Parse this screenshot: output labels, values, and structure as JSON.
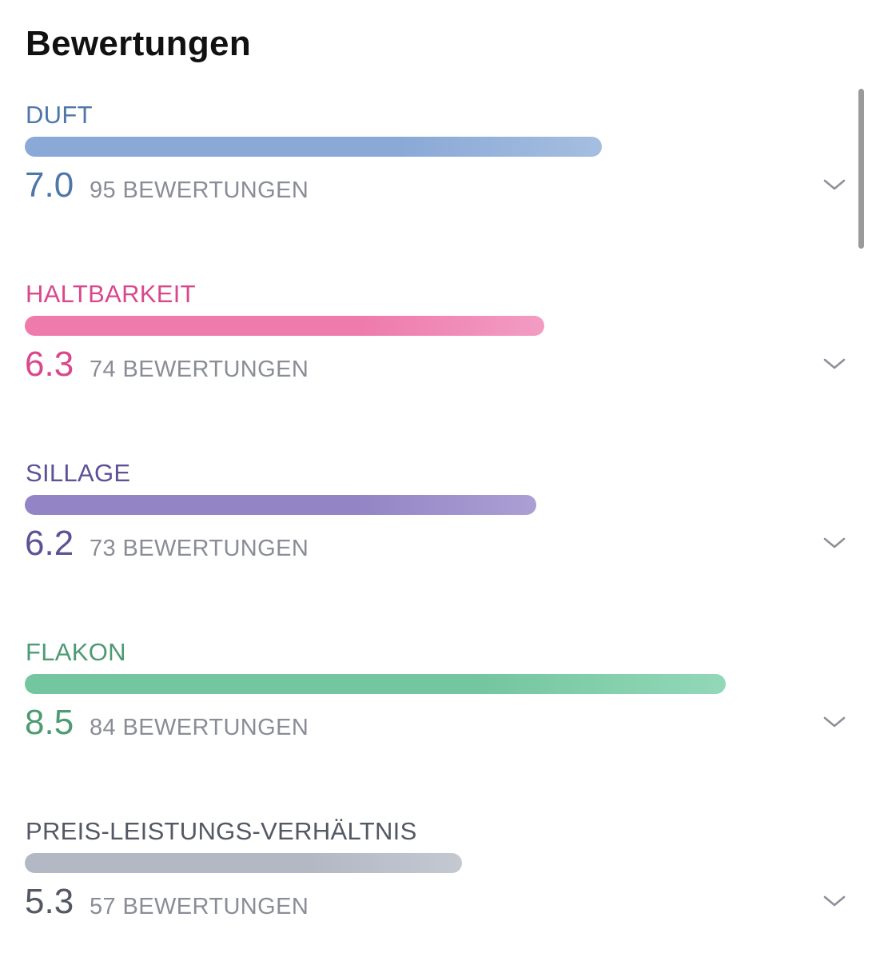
{
  "header": {
    "title": "Bewertungen"
  },
  "scale_max": 10,
  "ratings": [
    {
      "label": "DUFT",
      "score": "7.0",
      "value": 7.0,
      "count": "95 BEWERTUNGEN",
      "color": "#4f76a8",
      "bar_start": "#8aa9d6",
      "bar_end": "#a5bee0"
    },
    {
      "label": "HALTBARKEIT",
      "score": "6.3",
      "value": 6.3,
      "count": "74 BEWERTUNGEN",
      "color": "#d9488c",
      "bar_start": "#ee7bab",
      "bar_end": "#f29cc4"
    },
    {
      "label": "SILLAGE",
      "score": "6.2",
      "value": 6.2,
      "count": "73 BEWERTUNGEN",
      "color": "#5f5196",
      "bar_start": "#9385c5",
      "bar_end": "#ab9fd4"
    },
    {
      "label": "FLAKON",
      "score": "8.5",
      "value": 8.5,
      "count": "84 BEWERTUNGEN",
      "color": "#4e9a73",
      "bar_start": "#74c6a0",
      "bar_end": "#93d8b8"
    },
    {
      "label": "PREIS-LEISTUNGS-VERHÄLTNIS",
      "score": "5.3",
      "value": 5.3,
      "count": "57 BEWERTUNGEN",
      "color": "#545864",
      "bar_start": "#b4b8c4",
      "bar_end": "#c4c8d1"
    }
  ],
  "icons": {
    "expand": "chevron-down-icon"
  }
}
